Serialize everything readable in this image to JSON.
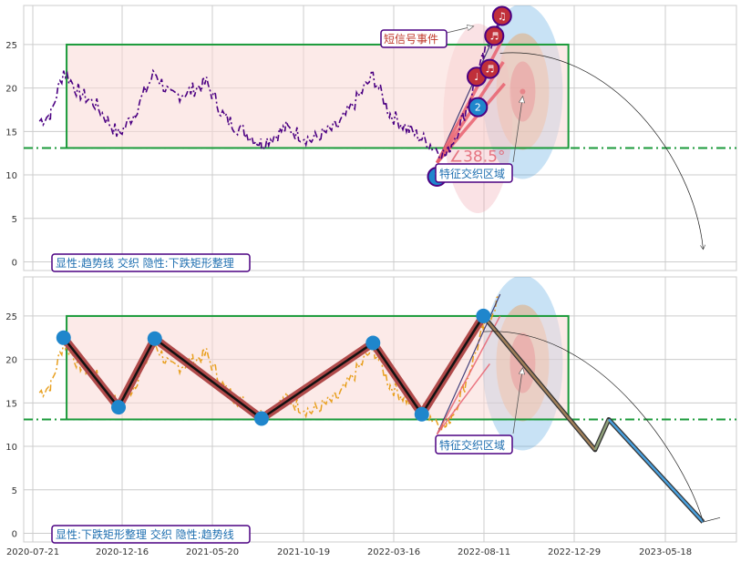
{
  "chart_data": [
    {
      "type": "line",
      "panel": "top",
      "ylim": [
        -1,
        29.5
      ],
      "yticks": [
        0,
        5,
        10,
        15,
        20,
        25
      ],
      "grid": true,
      "rectangle": {
        "x_start": "2020-09-15",
        "x_end": "2022-12-20",
        "y_low": 13.1,
        "y_high": 25.0
      },
      "support_line": 13.1,
      "series": [
        {
          "key": "price",
          "color": "#4b0082",
          "style": "dash-dot"
        }
      ],
      "texts": {
        "bottom_label": "显性:趋势线 交织 隐性:下跌矩形整理",
        "signal_label": "短信号事件",
        "zone_label": "特征交织区域",
        "angle_text": "∠38.5°"
      },
      "markers": [
        {
          "label": "1",
          "x": "2022-05-26",
          "y": 9.8
        },
        {
          "label": "2",
          "x": "2022-08-01",
          "y": 17.8
        }
      ],
      "music_markers": [
        {
          "label": "♩",
          "x": "2022-07-30",
          "y": 21.3
        },
        {
          "label": "♬",
          "x": "2022-08-20",
          "y": 22.2
        },
        {
          "label": "♬",
          "x": "2022-08-27",
          "y": 26.0
        },
        {
          "label": "♫",
          "x": "2022-09-08",
          "y": 28.3
        }
      ]
    },
    {
      "type": "line",
      "panel": "bottom",
      "ylim": [
        -1,
        29.5
      ],
      "yticks": [
        0,
        5,
        10,
        15,
        20,
        25
      ],
      "grid": true,
      "rectangle": {
        "x_start": "2020-09-15",
        "x_end": "2022-12-20",
        "y_low": 13.1,
        "y_high": 25.0
      },
      "support_line": 13.1,
      "series": [
        {
          "key": "price",
          "color": "#e8a020",
          "style": "dash-dot"
        }
      ],
      "zigzag": [
        {
          "x": "2020-09-10",
          "y": 22.5
        },
        {
          "x": "2020-12-10",
          "y": 14.5
        },
        {
          "x": "2021-02-10",
          "y": 22.4
        },
        {
          "x": "2021-08-10",
          "y": 13.2
        },
        {
          "x": "2022-02-10",
          "y": 21.9
        },
        {
          "x": "2022-05-01",
          "y": 13.7
        },
        {
          "x": "2022-08-10",
          "y": 25.0
        }
      ],
      "projection": [
        {
          "x": "2022-08-10",
          "y": 25.0
        },
        {
          "x": "2023-01-30",
          "y": 9.6
        },
        {
          "x": "2023-02-20",
          "y": 13.1
        },
        {
          "x": "2023-07-15",
          "y": 1.3
        }
      ],
      "texts": {
        "bottom_label": "显性:下跌矩形整理 交织 隐性:趋势线",
        "zone_label": "特征交织区域"
      }
    }
  ],
  "x_axis": {
    "tick_labels": [
      "2020-07-21",
      "2020-12-16",
      "2021-05-20",
      "2021-10-19",
      "2022-03-16",
      "2022-08-11",
      "2022-12-29",
      "2023-05-18"
    ]
  },
  "colors": {
    "grid": "#cccccc",
    "rect_edge": "#1a9a3a",
    "rect_fill": "#f9d9d6",
    "support": "#1a9a3a",
    "zigzag": "#b04a4a",
    "marker": "#1f86cc",
    "label_text": "#1f6fb0",
    "label_border": "#4b0082",
    "signal_text": "#c0392b"
  }
}
